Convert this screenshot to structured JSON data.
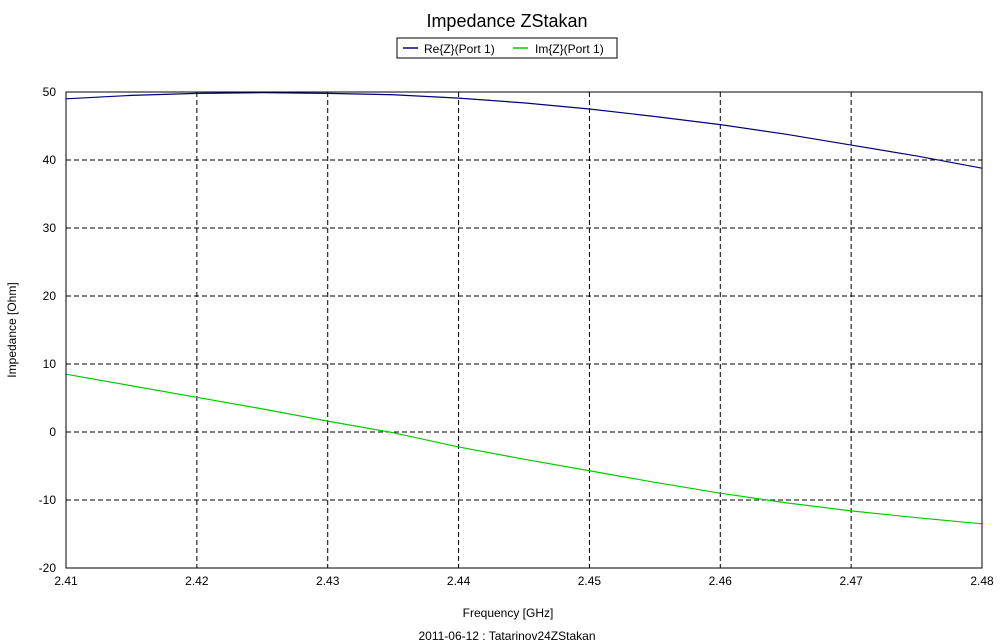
{
  "chart_data": {
    "type": "line",
    "title": "Impedance ZStakan",
    "xlabel": "Frequency [GHz]",
    "ylabel": "Impedance [Ohm]",
    "footer": "2011-06-12 : Tatarinov24ZStakan",
    "xlim": [
      2.41,
      2.48
    ],
    "ylim": [
      -20,
      50
    ],
    "xticks": [
      "2.41",
      "2.42",
      "2.43",
      "2.44",
      "2.45",
      "2.46",
      "2.47",
      "2.48"
    ],
    "yticks": [
      "50",
      "40",
      "30",
      "20",
      "10",
      "0",
      "-10",
      "-20"
    ],
    "grid": true,
    "legend_placement": "top-center",
    "x": [
      2.41,
      2.415,
      2.42,
      2.425,
      2.43,
      2.435,
      2.44,
      2.445,
      2.45,
      2.455,
      2.46,
      2.465,
      2.47,
      2.475,
      2.48
    ],
    "series": [
      {
        "name": "Re{Z}(Port 1)",
        "color": "#000080",
        "values": [
          49.0,
          49.5,
          49.8,
          49.9,
          49.8,
          49.6,
          49.1,
          48.4,
          47.5,
          46.4,
          45.2,
          43.8,
          42.2,
          40.6,
          38.8
        ]
      },
      {
        "name": "Im{Z}(Port 1)",
        "color": "#00cc00",
        "values": [
          8.5,
          6.8,
          5.1,
          3.4,
          1.6,
          -0.1,
          -2.2,
          -4.0,
          -5.7,
          -7.4,
          -9.0,
          -10.4,
          -11.6,
          -12.6,
          -13.5
        ]
      }
    ]
  }
}
